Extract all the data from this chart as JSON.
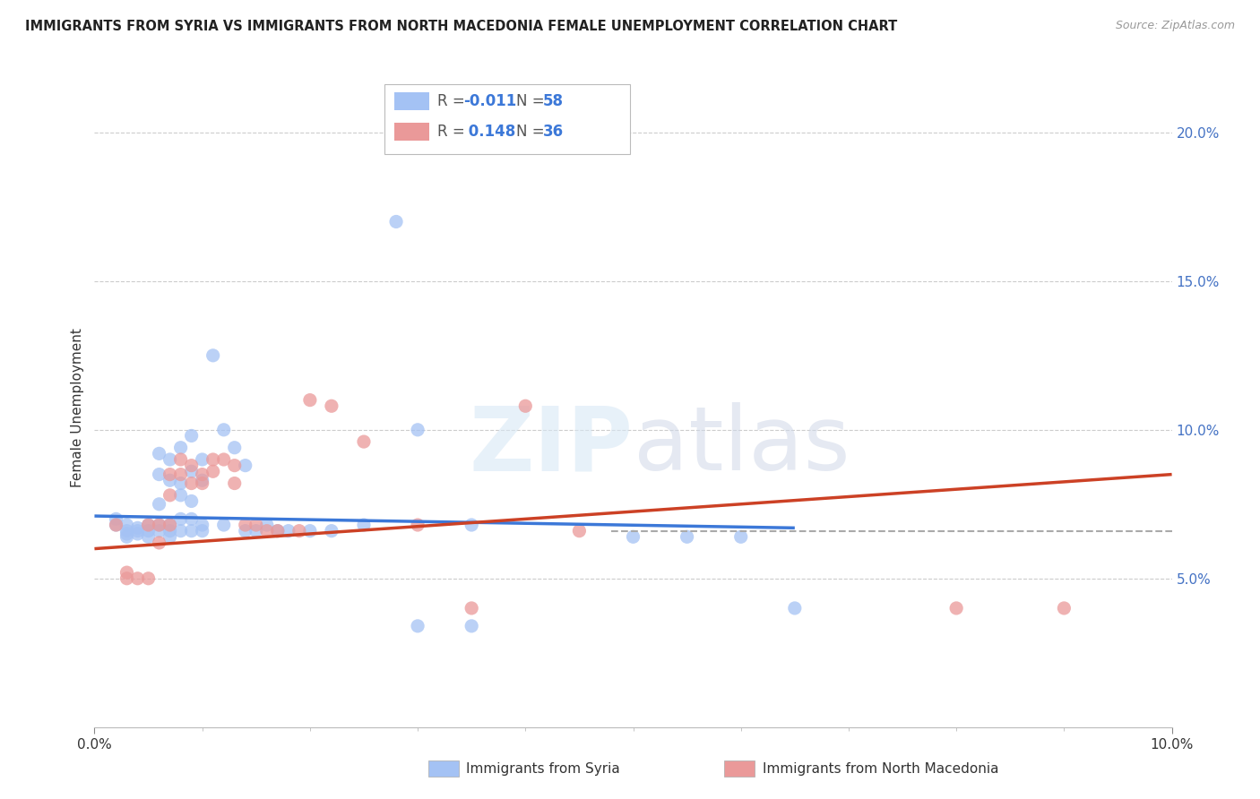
{
  "title": "IMMIGRANTS FROM SYRIA VS IMMIGRANTS FROM NORTH MACEDONIA FEMALE UNEMPLOYMENT CORRELATION CHART",
  "source": "Source: ZipAtlas.com",
  "ylabel": "Female Unemployment",
  "right_yticks": [
    0.05,
    0.1,
    0.15,
    0.2
  ],
  "right_ytick_labels": [
    "5.0%",
    "10.0%",
    "15.0%",
    "20.0%"
  ],
  "xlim": [
    0.0,
    0.1
  ],
  "ylim": [
    0.0,
    0.215
  ],
  "watermark": "ZIPatlas",
  "syria_color": "#a4c2f4",
  "north_mac_color": "#ea9999",
  "syria_line_color": "#3c78d8",
  "north_mac_line_color": "#cc4125",
  "dashed_line_color": "#aaaaaa",
  "dashed_line_y": 0.066,
  "dashed_line_xmin": 0.048,
  "syria_line_x": [
    0.0,
    0.065
  ],
  "syria_line_y": [
    0.071,
    0.067
  ],
  "north_mac_line_x": [
    0.0,
    0.1
  ],
  "north_mac_line_y": [
    0.06,
    0.085
  ],
  "syria_points": [
    [
      0.002,
      0.07
    ],
    [
      0.002,
      0.068
    ],
    [
      0.003,
      0.068
    ],
    [
      0.003,
      0.066
    ],
    [
      0.003,
      0.065
    ],
    [
      0.003,
      0.064
    ],
    [
      0.004,
      0.067
    ],
    [
      0.004,
      0.066
    ],
    [
      0.004,
      0.065
    ],
    [
      0.005,
      0.068
    ],
    [
      0.005,
      0.066
    ],
    [
      0.005,
      0.064
    ],
    [
      0.006,
      0.092
    ],
    [
      0.006,
      0.085
    ],
    [
      0.006,
      0.075
    ],
    [
      0.006,
      0.068
    ],
    [
      0.006,
      0.066
    ],
    [
      0.007,
      0.09
    ],
    [
      0.007,
      0.083
    ],
    [
      0.007,
      0.068
    ],
    [
      0.007,
      0.066
    ],
    [
      0.007,
      0.064
    ],
    [
      0.008,
      0.094
    ],
    [
      0.008,
      0.082
    ],
    [
      0.008,
      0.078
    ],
    [
      0.008,
      0.07
    ],
    [
      0.008,
      0.066
    ],
    [
      0.009,
      0.098
    ],
    [
      0.009,
      0.086
    ],
    [
      0.009,
      0.076
    ],
    [
      0.009,
      0.07
    ],
    [
      0.009,
      0.066
    ],
    [
      0.01,
      0.09
    ],
    [
      0.01,
      0.083
    ],
    [
      0.01,
      0.068
    ],
    [
      0.01,
      0.066
    ],
    [
      0.011,
      0.125
    ],
    [
      0.012,
      0.1
    ],
    [
      0.012,
      0.068
    ],
    [
      0.013,
      0.094
    ],
    [
      0.014,
      0.088
    ],
    [
      0.014,
      0.066
    ],
    [
      0.015,
      0.066
    ],
    [
      0.016,
      0.068
    ],
    [
      0.017,
      0.066
    ],
    [
      0.018,
      0.066
    ],
    [
      0.02,
      0.066
    ],
    [
      0.022,
      0.066
    ],
    [
      0.025,
      0.068
    ],
    [
      0.028,
      0.17
    ],
    [
      0.03,
      0.1
    ],
    [
      0.03,
      0.034
    ],
    [
      0.035,
      0.068
    ],
    [
      0.035,
      0.034
    ],
    [
      0.05,
      0.064
    ],
    [
      0.055,
      0.064
    ],
    [
      0.06,
      0.064
    ],
    [
      0.065,
      0.04
    ]
  ],
  "north_mac_points": [
    [
      0.002,
      0.068
    ],
    [
      0.003,
      0.052
    ],
    [
      0.003,
      0.05
    ],
    [
      0.004,
      0.05
    ],
    [
      0.005,
      0.068
    ],
    [
      0.005,
      0.05
    ],
    [
      0.006,
      0.068
    ],
    [
      0.006,
      0.062
    ],
    [
      0.007,
      0.085
    ],
    [
      0.007,
      0.078
    ],
    [
      0.007,
      0.068
    ],
    [
      0.008,
      0.09
    ],
    [
      0.008,
      0.085
    ],
    [
      0.009,
      0.088
    ],
    [
      0.009,
      0.082
    ],
    [
      0.01,
      0.085
    ],
    [
      0.01,
      0.082
    ],
    [
      0.011,
      0.09
    ],
    [
      0.011,
      0.086
    ],
    [
      0.012,
      0.09
    ],
    [
      0.013,
      0.088
    ],
    [
      0.013,
      0.082
    ],
    [
      0.014,
      0.068
    ],
    [
      0.015,
      0.068
    ],
    [
      0.016,
      0.066
    ],
    [
      0.017,
      0.066
    ],
    [
      0.019,
      0.066
    ],
    [
      0.02,
      0.11
    ],
    [
      0.022,
      0.108
    ],
    [
      0.025,
      0.096
    ],
    [
      0.03,
      0.068
    ],
    [
      0.035,
      0.04
    ],
    [
      0.04,
      0.108
    ],
    [
      0.045,
      0.066
    ],
    [
      0.08,
      0.04
    ],
    [
      0.09,
      0.04
    ]
  ]
}
